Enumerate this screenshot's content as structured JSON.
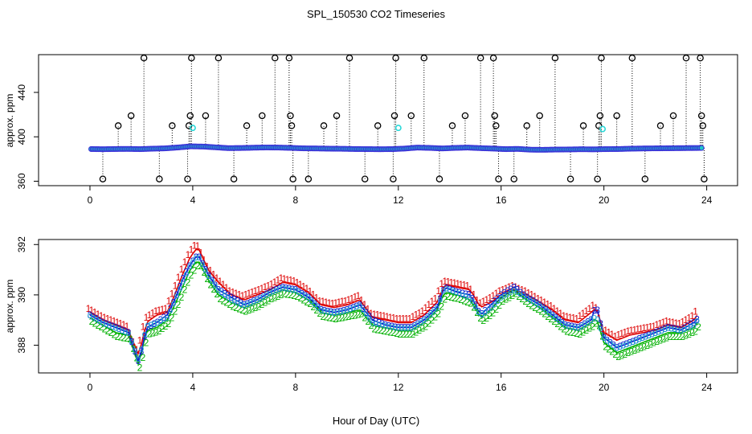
{
  "figure": {
    "title": "SPL_150530  CO2 Timeseries",
    "xlabel": "Hour of Day (UTC)"
  },
  "chart_data": [
    {
      "type": "scatter",
      "id": "top",
      "ylabel": "approx. ppm",
      "xlim": [
        -2,
        25.2
      ],
      "ylim": [
        356,
        474
      ],
      "xticks": [
        0,
        4,
        8,
        12,
        16,
        20,
        24
      ],
      "xtick_labels": [
        "0",
        "4",
        "8",
        "12",
        "16",
        "20",
        "24"
      ],
      "yticks": [
        360,
        400,
        440
      ],
      "ytick_labels": [
        "360",
        "400",
        "440"
      ],
      "baseline": [
        389.0,
        388.8,
        389.0,
        389.1,
        388.9,
        389.3,
        389.6,
        390.4,
        391.4,
        391.2,
        390.5,
        389.8,
        389.9,
        390.2,
        390.4,
        390.3,
        390.0,
        389.6,
        389.5,
        389.3,
        389.2,
        389.0,
        388.9,
        388.8,
        388.9,
        389.4,
        390.3,
        390.0,
        389.5,
        390.0,
        390.3,
        389.8,
        389.4,
        388.9,
        389.1,
        388.4,
        388.3,
        388.5,
        388.6,
        388.8,
        388.7,
        388.9,
        389.0,
        389.3,
        389.5,
        389.6,
        389.7,
        389.8,
        389.9,
        390.0
      ],
      "spikes": [
        {
          "x": 0.5,
          "y": 362
        },
        {
          "x": 1.1,
          "y": 410
        },
        {
          "x": 1.6,
          "y": 419
        },
        {
          "x": 2.1,
          "y": 471
        },
        {
          "x": 2.7,
          "y": 362
        },
        {
          "x": 3.2,
          "y": 410
        },
        {
          "x": 3.8,
          "y": 362
        },
        {
          "x": 3.85,
          "y": 410
        },
        {
          "x": 3.9,
          "y": 419
        },
        {
          "x": 3.95,
          "y": 471
        },
        {
          "x": 4.5,
          "y": 419
        },
        {
          "x": 5.0,
          "y": 471
        },
        {
          "x": 5.6,
          "y": 362
        },
        {
          "x": 6.1,
          "y": 410
        },
        {
          "x": 6.7,
          "y": 419
        },
        {
          "x": 7.2,
          "y": 471
        },
        {
          "x": 7.75,
          "y": 471
        },
        {
          "x": 7.8,
          "y": 419
        },
        {
          "x": 7.85,
          "y": 410
        },
        {
          "x": 7.9,
          "y": 362
        },
        {
          "x": 8.5,
          "y": 362
        },
        {
          "x": 9.1,
          "y": 410
        },
        {
          "x": 9.6,
          "y": 419
        },
        {
          "x": 10.1,
          "y": 471
        },
        {
          "x": 10.7,
          "y": 362
        },
        {
          "x": 11.2,
          "y": 410
        },
        {
          "x": 11.8,
          "y": 362
        },
        {
          "x": 11.85,
          "y": 419
        },
        {
          "x": 11.9,
          "y": 471
        },
        {
          "x": 12.5,
          "y": 419
        },
        {
          "x": 13.0,
          "y": 471
        },
        {
          "x": 13.6,
          "y": 362
        },
        {
          "x": 14.1,
          "y": 410
        },
        {
          "x": 14.6,
          "y": 419
        },
        {
          "x": 15.2,
          "y": 471
        },
        {
          "x": 15.7,
          "y": 471
        },
        {
          "x": 15.75,
          "y": 419
        },
        {
          "x": 15.8,
          "y": 410
        },
        {
          "x": 15.9,
          "y": 362
        },
        {
          "x": 16.5,
          "y": 362
        },
        {
          "x": 17.0,
          "y": 410
        },
        {
          "x": 17.5,
          "y": 419
        },
        {
          "x": 18.1,
          "y": 471
        },
        {
          "x": 18.7,
          "y": 362
        },
        {
          "x": 19.2,
          "y": 410
        },
        {
          "x": 19.75,
          "y": 362
        },
        {
          "x": 19.8,
          "y": 410
        },
        {
          "x": 19.85,
          "y": 419
        },
        {
          "x": 19.9,
          "y": 471
        },
        {
          "x": 20.5,
          "y": 419
        },
        {
          "x": 21.1,
          "y": 471
        },
        {
          "x": 21.6,
          "y": 362
        },
        {
          "x": 22.2,
          "y": 410
        },
        {
          "x": 22.7,
          "y": 419
        },
        {
          "x": 23.2,
          "y": 471
        },
        {
          "x": 23.75,
          "y": 471
        },
        {
          "x": 23.8,
          "y": 419
        },
        {
          "x": 23.85,
          "y": 410
        },
        {
          "x": 23.9,
          "y": 362
        }
      ],
      "flagged": [
        {
          "x": 4.0,
          "y": 408
        },
        {
          "x": 12.0,
          "y": 408
        },
        {
          "x": 19.95,
          "y": 407
        }
      ],
      "colors": {
        "baseline_outline": "#3a30d8",
        "baseline_fill": "#20c8c8",
        "baseline_mid": "#ff8a00",
        "spike": "#000000",
        "flagged": "#2ad8d8"
      }
    },
    {
      "type": "line",
      "id": "bottom",
      "ylabel": "approx. ppm",
      "xlim": [
        -2,
        25.2
      ],
      "ylim": [
        386.9,
        392.2
      ],
      "xticks": [
        0,
        4,
        8,
        12,
        16,
        20,
        24
      ],
      "xtick_labels": [
        "0",
        "4",
        "8",
        "12",
        "16",
        "20",
        "24"
      ],
      "yticks": [
        388,
        390,
        392
      ],
      "ytick_labels": [
        "388",
        "390",
        "392"
      ],
      "x": [
        0.0,
        0.5,
        1.0,
        1.5,
        1.9,
        2.2,
        2.6,
        3.0,
        3.3,
        3.6,
        3.9,
        4.2,
        4.6,
        5.0,
        5.5,
        6.0,
        6.5,
        7.0,
        7.5,
        8.0,
        8.5,
        9.0,
        9.5,
        10.0,
        10.5,
        11.0,
        11.5,
        12.0,
        12.5,
        13.0,
        13.5,
        13.8,
        14.3,
        14.8,
        15.2,
        15.6,
        16.0,
        16.5,
        17.0,
        17.5,
        18.0,
        18.5,
        19.0,
        19.5,
        19.7,
        20.0,
        20.5,
        21.0,
        21.5,
        22.0,
        22.5,
        23.0,
        23.5,
        23.7
      ],
      "series": [
        {
          "name": "1",
          "color": "#dd0000",
          "values": [
            389.3,
            389.0,
            388.8,
            388.6,
            387.6,
            388.9,
            389.2,
            389.3,
            390.0,
            390.8,
            391.5,
            391.9,
            391.0,
            390.5,
            390.0,
            389.8,
            390.0,
            390.2,
            390.5,
            390.4,
            390.1,
            389.6,
            389.5,
            389.6,
            389.8,
            389.1,
            389.0,
            388.9,
            388.9,
            389.2,
            389.7,
            390.4,
            390.3,
            390.2,
            389.5,
            389.7,
            390.0,
            390.2,
            390.0,
            389.7,
            389.4,
            389.0,
            388.9,
            389.3,
            389.5,
            388.5,
            388.2,
            388.4,
            388.5,
            388.6,
            388.8,
            388.7,
            389.0,
            389.3
          ]
        },
        {
          "name": "2",
          "color": "#00b000",
          "values": [
            389.1,
            388.8,
            388.5,
            388.4,
            387.2,
            388.6,
            388.7,
            389.0,
            389.6,
            390.3,
            391.0,
            391.4,
            390.6,
            390.0,
            389.7,
            389.5,
            389.7,
            390.0,
            390.2,
            390.1,
            389.8,
            389.3,
            389.2,
            389.3,
            389.4,
            388.8,
            388.7,
            388.6,
            388.6,
            388.9,
            389.4,
            390.1,
            390.0,
            389.8,
            389.1,
            389.4,
            389.9,
            390.2,
            389.8,
            389.5,
            389.1,
            388.7,
            388.6,
            388.9,
            389.1,
            388.1,
            387.7,
            387.9,
            388.1,
            388.3,
            388.5,
            388.5,
            388.7,
            389.0
          ]
        },
        {
          "name": "3",
          "color": "#1020d0",
          "values": [
            389.2,
            388.9,
            388.7,
            388.5,
            387.3,
            388.7,
            388.9,
            389.2,
            389.8,
            390.6,
            391.2,
            391.6,
            390.8,
            390.2,
            389.9,
            389.6,
            389.8,
            390.1,
            390.3,
            390.2,
            389.9,
            389.4,
            389.3,
            389.4,
            389.6,
            389.0,
            388.8,
            388.7,
            388.7,
            389.0,
            389.5,
            390.3,
            390.1,
            390.0,
            389.2,
            389.6,
            390.0,
            390.3,
            389.9,
            389.6,
            389.2,
            388.8,
            388.7,
            389.0,
            389.6,
            388.3,
            387.9,
            388.1,
            388.3,
            388.5,
            388.7,
            388.6,
            388.9,
            389.1
          ]
        },
        {
          "name": "o",
          "color": "#20a0d0",
          "values": [
            389.2,
            388.9,
            388.7,
            388.5,
            387.4,
            388.8,
            388.9,
            389.1,
            389.8,
            390.5,
            391.2,
            391.6,
            390.8,
            390.2,
            389.8,
            389.6,
            389.8,
            390.1,
            390.3,
            390.2,
            389.9,
            389.4,
            389.3,
            389.4,
            389.6,
            388.9,
            388.8,
            388.7,
            388.7,
            389.0,
            389.5,
            390.3,
            390.1,
            389.9,
            389.2,
            389.5,
            389.9,
            390.2,
            389.9,
            389.6,
            389.2,
            388.8,
            388.7,
            389.0,
            389.2,
            388.3,
            387.9,
            388.1,
            388.3,
            388.5,
            388.7,
            388.6,
            388.8,
            389.1
          ]
        }
      ]
    }
  ]
}
